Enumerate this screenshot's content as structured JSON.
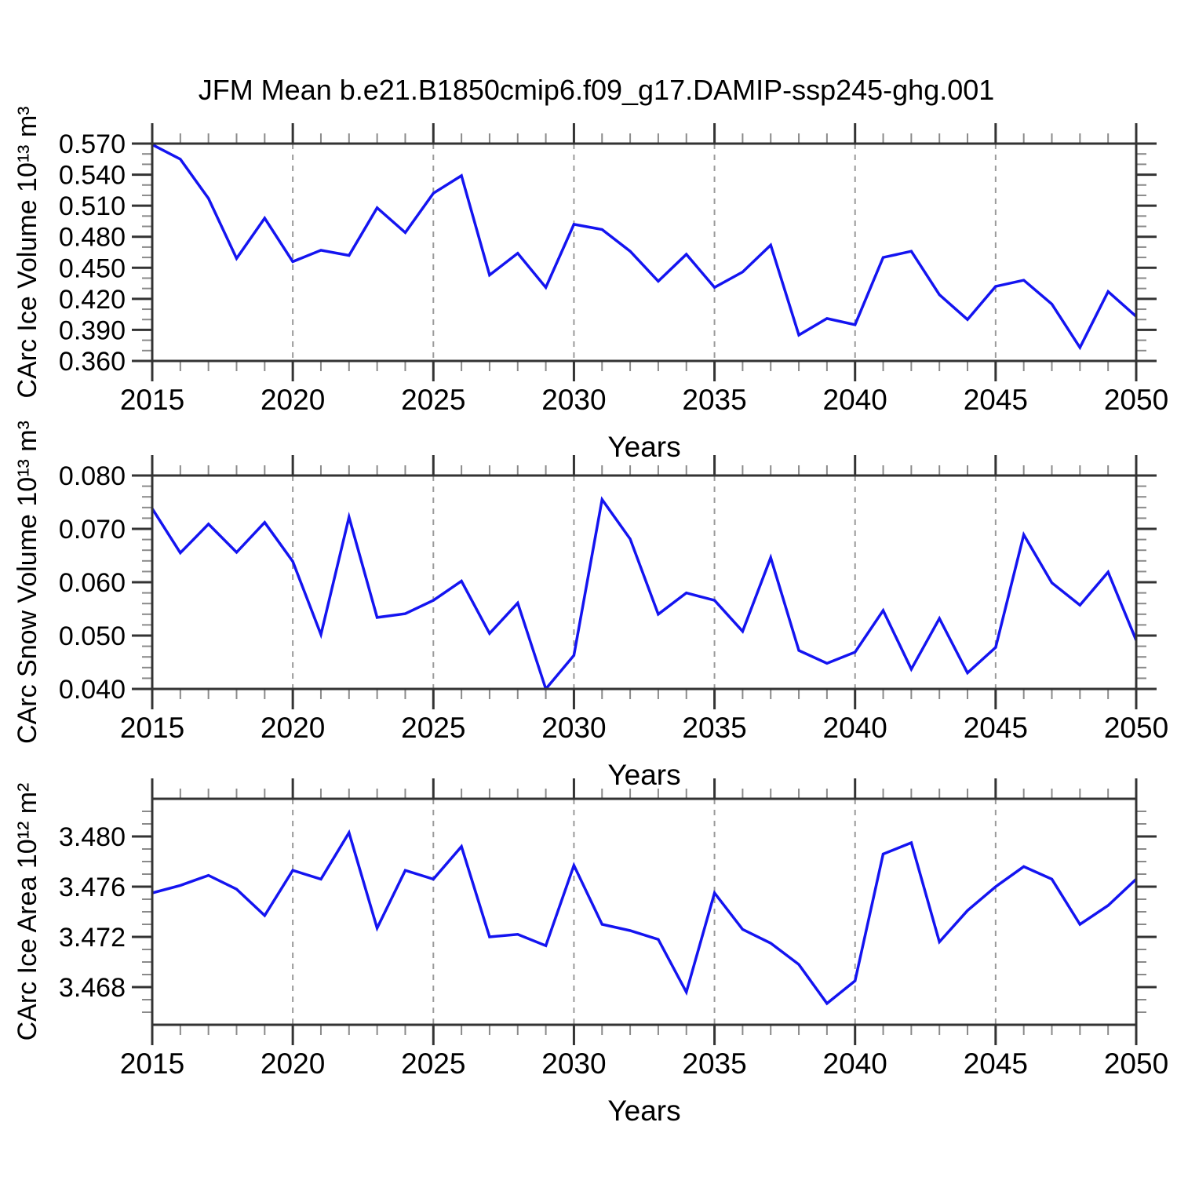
{
  "title": "JFM Mean b.e21.B1850cmip6.f09_g17.DAMIP-ssp245-ghg.001",
  "colors": {
    "line": "#1414f0",
    "axis": "#333333",
    "minor_tick": "#8a8a8a",
    "grid": "#9a9a9a",
    "background": "#ffffff",
    "text": "#000000"
  },
  "chart_data": [
    {
      "type": "line",
      "name": "carc-ice-volume",
      "title": "",
      "xlabel": "Years",
      "ylabel": "CArc Ice Volume 10¹³ m³",
      "xlim": [
        2015,
        2050
      ],
      "ylim": [
        0.36,
        0.57
      ],
      "xticks_major": [
        2015,
        2020,
        2025,
        2030,
        2035,
        2040,
        2045,
        2050
      ],
      "xminor_step": 1,
      "grid_years": [
        2020,
        2025,
        2030,
        2035,
        2040,
        2045
      ],
      "yticks_major": [
        0.36,
        0.39,
        0.42,
        0.45,
        0.48,
        0.51,
        0.54,
        0.57
      ],
      "yminor_step": 0.01,
      "ytick_decimals": 3,
      "grid": "vertical-dashed",
      "legend": "none",
      "x": [
        2015,
        2016,
        2017,
        2018,
        2019,
        2020,
        2021,
        2022,
        2023,
        2024,
        2025,
        2026,
        2027,
        2028,
        2029,
        2030,
        2031,
        2032,
        2033,
        2034,
        2035,
        2036,
        2037,
        2038,
        2039,
        2040,
        2041,
        2042,
        2043,
        2044,
        2045,
        2046,
        2047,
        2048,
        2049,
        2050
      ],
      "series": [
        {
          "name": "CArc Ice Volume",
          "values": [
            0.569,
            0.555,
            0.517,
            0.459,
            0.498,
            0.456,
            0.467,
            0.462,
            0.508,
            0.484,
            0.522,
            0.539,
            0.443,
            0.464,
            0.431,
            0.492,
            0.487,
            0.466,
            0.437,
            0.463,
            0.431,
            0.446,
            0.472,
            0.385,
            0.401,
            0.395,
            0.46,
            0.466,
            0.424,
            0.4,
            0.432,
            0.438,
            0.415,
            0.373,
            0.427,
            0.403
          ]
        }
      ]
    },
    {
      "type": "line",
      "name": "carc-snow-volume",
      "title": "",
      "xlabel": "Years",
      "ylabel": "CArc Snow Volume 10¹³ m³",
      "xlim": [
        2015,
        2050
      ],
      "ylim": [
        0.04,
        0.08
      ],
      "xticks_major": [
        2015,
        2020,
        2025,
        2030,
        2035,
        2040,
        2045,
        2050
      ],
      "xminor_step": 1,
      "grid_years": [
        2020,
        2025,
        2030,
        2035,
        2040,
        2045
      ],
      "yticks_major": [
        0.04,
        0.05,
        0.06,
        0.07,
        0.08
      ],
      "yminor_step": 0.002,
      "ytick_decimals": 3,
      "grid": "vertical-dashed",
      "legend": "none",
      "x": [
        2015,
        2016,
        2017,
        2018,
        2019,
        2020,
        2021,
        2022,
        2023,
        2024,
        2025,
        2026,
        2027,
        2028,
        2029,
        2030,
        2031,
        2032,
        2033,
        2034,
        2035,
        2036,
        2037,
        2038,
        2039,
        2040,
        2041,
        2042,
        2043,
        2044,
        2045,
        2046,
        2047,
        2048,
        2049,
        2050
      ],
      "series": [
        {
          "name": "CArc Snow Volume",
          "values": [
            0.0738,
            0.0655,
            0.0709,
            0.0656,
            0.0712,
            0.0639,
            0.0502,
            0.0722,
            0.0534,
            0.0541,
            0.0566,
            0.0602,
            0.0504,
            0.0561,
            0.04,
            0.0463,
            0.0755,
            0.0681,
            0.054,
            0.058,
            0.0566,
            0.0508,
            0.0646,
            0.0472,
            0.0448,
            0.0469,
            0.0547,
            0.0437,
            0.0532,
            0.043,
            0.0478,
            0.0689,
            0.0599,
            0.0557,
            0.0619,
            0.0491
          ]
        }
      ]
    },
    {
      "type": "line",
      "name": "carc-ice-area",
      "title": "",
      "xlabel": "Years",
      "ylabel": "CArc Ice Area 10¹² m²",
      "xlim": [
        2015,
        2050
      ],
      "ylim": [
        3.465,
        3.483
      ],
      "xticks_major": [
        2015,
        2020,
        2025,
        2030,
        2035,
        2040,
        2045,
        2050
      ],
      "xminor_step": 1,
      "grid_years": [
        2020,
        2025,
        2030,
        2035,
        2040,
        2045
      ],
      "yticks_major": [
        3.468,
        3.472,
        3.476,
        3.48
      ],
      "yminor_step": 0.001,
      "ytick_decimals": 3,
      "grid": "vertical-dashed",
      "legend": "none",
      "x": [
        2015,
        2016,
        2017,
        2018,
        2019,
        2020,
        2021,
        2022,
        2023,
        2024,
        2025,
        2026,
        2027,
        2028,
        2029,
        2030,
        2031,
        2032,
        2033,
        2034,
        2035,
        2036,
        2037,
        2038,
        2039,
        2040,
        2041,
        2042,
        2043,
        2044,
        2045,
        2046,
        2047,
        2048,
        2049,
        2050
      ],
      "series": [
        {
          "name": "CArc Ice Area",
          "values": [
            3.4755,
            3.4761,
            3.4769,
            3.4758,
            3.4737,
            3.4773,
            3.4766,
            3.4803,
            3.4727,
            3.4773,
            3.4766,
            3.4792,
            3.472,
            3.4722,
            3.4713,
            3.4777,
            3.473,
            3.4725,
            3.4718,
            3.4676,
            3.4755,
            3.4726,
            3.4715,
            3.4698,
            3.4667,
            3.4685,
            3.4786,
            3.4795,
            3.4716,
            3.4741,
            3.476,
            3.4776,
            3.4766,
            3.473,
            3.4745,
            3.4766
          ]
        }
      ]
    }
  ]
}
